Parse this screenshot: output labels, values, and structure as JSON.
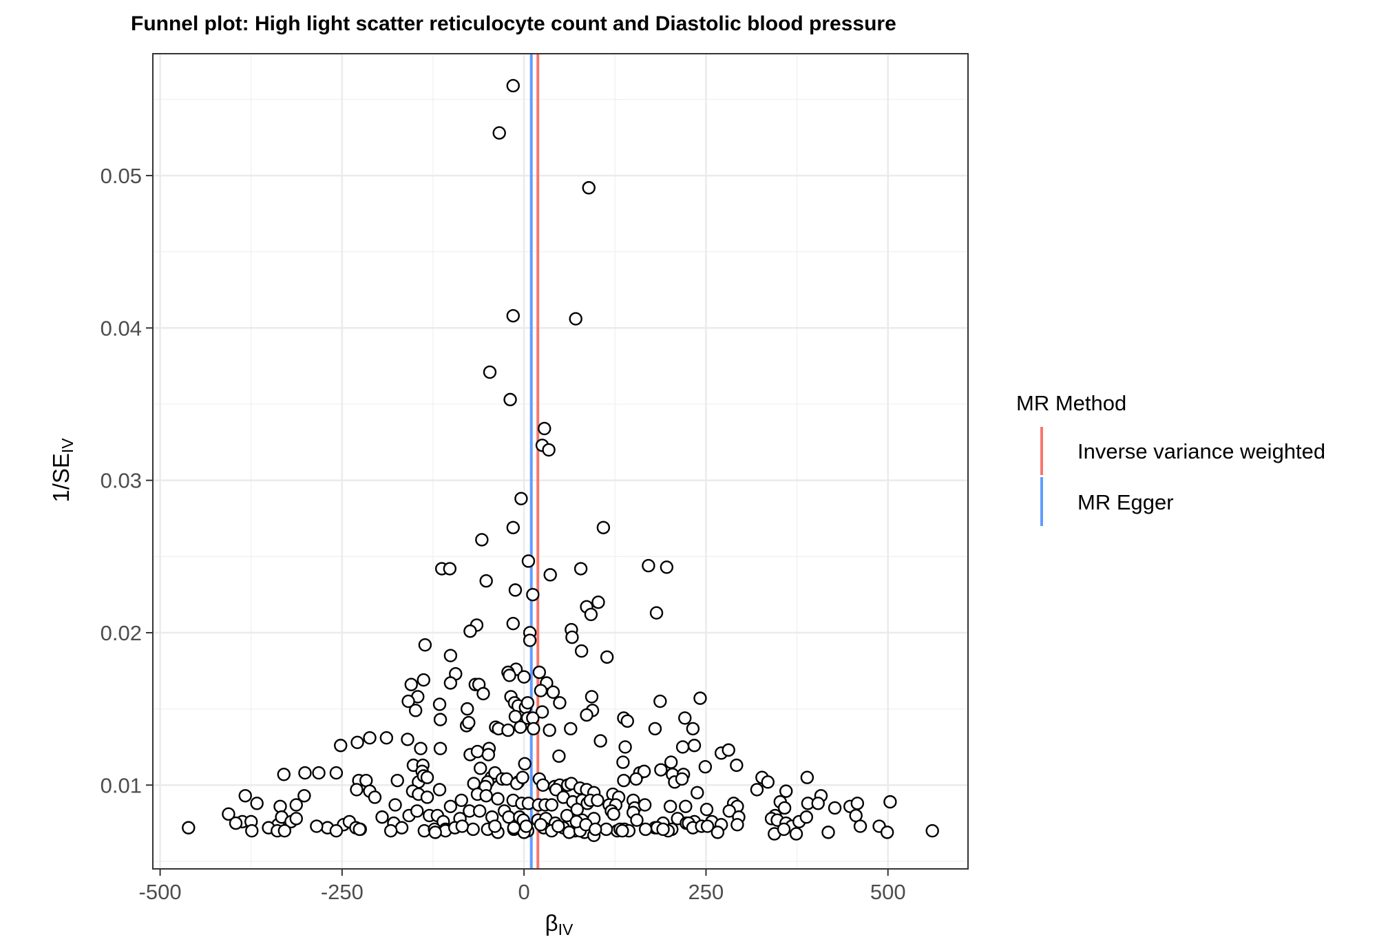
{
  "chart_data": {
    "type": "scatter",
    "title": "Funnel plot: High light scatter reticulocyte count and Diastolic blood pressure",
    "xlabel": {
      "main": "β",
      "sub": "IV"
    },
    "ylabel": {
      "main": "1/SE",
      "sub": "IV"
    },
    "xlim": [
      -510,
      610
    ],
    "ylim": [
      0.0045,
      0.058
    ],
    "xticks": [
      -500,
      -250,
      0,
      250,
      500
    ],
    "xtick_labels": [
      "-500",
      "-250",
      "0",
      "250",
      "500"
    ],
    "yticks": [
      0.01,
      0.02,
      0.03,
      0.04,
      0.05
    ],
    "ytick_labels": [
      "0.01",
      "0.02",
      "0.03",
      "0.04",
      "0.05"
    ],
    "grid": true,
    "legend": {
      "title": "MR Method",
      "position": "right",
      "entries": [
        {
          "name": "Inverse variance weighted",
          "color": "#f8766d"
        },
        {
          "name": "MR Egger",
          "color": "#619cff"
        }
      ]
    },
    "vlines": [
      {
        "method": "Inverse variance weighted",
        "x": 19,
        "color": "#f8766d"
      },
      {
        "method": "MR Egger",
        "x": 10,
        "color": "#619cff"
      }
    ],
    "points": [
      [
        -15,
        0.0559
      ],
      [
        -34,
        0.0528
      ],
      [
        89,
        0.0492
      ],
      [
        -15,
        0.0408
      ],
      [
        71,
        0.0406
      ],
      [
        -47,
        0.0371
      ],
      [
        -19,
        0.0353
      ],
      [
        28,
        0.0334
      ],
      [
        25,
        0.0323
      ],
      [
        34,
        0.032
      ],
      [
        -4,
        0.0288
      ],
      [
        -15,
        0.0269
      ],
      [
        109,
        0.0269
      ],
      [
        -58,
        0.0261
      ],
      [
        6,
        0.0247
      ],
      [
        171,
        0.0244
      ],
      [
        196,
        0.0243
      ],
      [
        -113,
        0.0242
      ],
      [
        -102,
        0.0242
      ],
      [
        78,
        0.0242
      ],
      [
        36,
        0.0238
      ],
      [
        -52,
        0.0234
      ],
      [
        -12,
        0.0228
      ],
      [
        12,
        0.0225
      ],
      [
        102,
        0.022
      ],
      [
        86,
        0.0217
      ],
      [
        92,
        0.0212
      ],
      [
        182,
        0.0213
      ],
      [
        -65,
        0.0205
      ],
      [
        -74,
        0.0201
      ],
      [
        -15,
        0.0206
      ],
      [
        65,
        0.0202
      ],
      [
        8,
        0.02
      ],
      [
        66,
        0.0197
      ],
      [
        8,
        0.0195
      ],
      [
        -136,
        0.0192
      ],
      [
        -101,
        0.0185
      ],
      [
        79,
        0.0188
      ],
      [
        114,
        0.0184
      ],
      [
        -11,
        0.0176
      ],
      [
        -22,
        0.0174
      ],
      [
        21,
        0.0174
      ],
      [
        -94,
        0.0173
      ],
      [
        -20,
        0.0172
      ],
      [
        0,
        0.0171
      ],
      [
        -101,
        0.0167
      ],
      [
        31,
        0.0167
      ],
      [
        -155,
        0.0166
      ],
      [
        -138,
        0.0169
      ],
      [
        -67,
        0.0166
      ],
      [
        -62,
        0.0166
      ],
      [
        23,
        0.0162
      ],
      [
        40,
        0.0161
      ],
      [
        -56,
        0.016
      ],
      [
        -146,
        0.0158
      ],
      [
        -18,
        0.0158
      ],
      [
        93,
        0.0158
      ],
      [
        -159,
        0.0155
      ],
      [
        242,
        0.0157
      ],
      [
        -13,
        0.0154
      ],
      [
        49,
        0.0154
      ],
      [
        187,
        0.0155
      ],
      [
        -116,
        0.0153
      ],
      [
        -8,
        0.0152
      ],
      [
        2,
        0.0151
      ],
      [
        5,
        0.0154
      ],
      [
        -78,
        0.015
      ],
      [
        -149,
        0.0149
      ],
      [
        94,
        0.0149
      ],
      [
        25,
        0.0148
      ],
      [
        -12,
        0.0145
      ],
      [
        86,
        0.0146
      ],
      [
        5,
        0.0144
      ],
      [
        -115,
        0.0143
      ],
      [
        137,
        0.0144
      ],
      [
        12,
        0.0144
      ],
      [
        142,
        0.0142
      ],
      [
        221,
        0.0144
      ],
      [
        -79,
        0.0139
      ],
      [
        -76,
        0.0141
      ],
      [
        -39,
        0.0138
      ],
      [
        -35,
        0.0137
      ],
      [
        -22,
        0.0136
      ],
      [
        -5,
        0.0138
      ],
      [
        13,
        0.0137
      ],
      [
        35,
        0.0136
      ],
      [
        64,
        0.0137
      ],
      [
        180,
        0.0137
      ],
      [
        232,
        0.0137
      ],
      [
        -189,
        0.0131
      ],
      [
        -212,
        0.0131
      ],
      [
        -160,
        0.013
      ],
      [
        105,
        0.0129
      ],
      [
        -229,
        0.0128
      ],
      [
        -252,
        0.0126
      ],
      [
        -142,
        0.0124
      ],
      [
        -115,
        0.0124
      ],
      [
        -48,
        0.0124
      ],
      [
        -74,
        0.012
      ],
      [
        -64,
        0.0122
      ],
      [
        -49,
        0.012
      ],
      [
        48,
        0.0119
      ],
      [
        139,
        0.0125
      ],
      [
        218,
        0.0125
      ],
      [
        234,
        0.0126
      ],
      [
        271,
        0.0121
      ],
      [
        281,
        0.0123
      ],
      [
        -152,
        0.0113
      ],
      [
        -139,
        0.0113
      ],
      [
        -60,
        0.0111
      ],
      [
        1,
        0.0114
      ],
      [
        136,
        0.0115
      ],
      [
        202,
        0.0115
      ],
      [
        292,
        0.0113
      ],
      [
        -140,
        0.0109
      ],
      [
        -45,
        0.0105
      ],
      [
        -40,
        0.0108
      ],
      [
        -30,
        0.0104
      ],
      [
        -24,
        0.0104
      ],
      [
        -8,
        0.0102
      ],
      [
        159,
        0.0108
      ],
      [
        165,
        0.0109
      ],
      [
        188,
        0.011
      ],
      [
        204,
        0.0107
      ],
      [
        219,
        0.0107
      ],
      [
        249,
        0.0112
      ],
      [
        -330,
        0.0107
      ],
      [
        -301,
        0.0108
      ],
      [
        -282,
        0.0108
      ],
      [
        -258,
        0.0108
      ],
      [
        -174,
        0.0103
      ],
      [
        -145,
        0.0102
      ],
      [
        -138,
        0.0106
      ],
      [
        -133,
        0.0105
      ],
      [
        -227,
        0.0103
      ],
      [
        -217,
        0.0103
      ],
      [
        -69,
        0.0101
      ],
      [
        -50,
        0.0102
      ],
      [
        -53,
        0.0099
      ],
      [
        -10,
        0.0101
      ],
      [
        -2,
        0.0105
      ],
      [
        21,
        0.0104
      ],
      [
        26,
        0.01
      ],
      [
        42,
        0.0099
      ],
      [
        49,
        0.01
      ],
      [
        60,
        0.01
      ],
      [
        65,
        0.0101
      ],
      [
        77,
        0.0098
      ],
      [
        86,
        0.0097
      ],
      [
        96,
        0.0095
      ],
      [
        122,
        0.0094
      ],
      [
        130,
        0.0092
      ],
      [
        137,
        0.0103
      ],
      [
        154,
        0.0104
      ],
      [
        207,
        0.0102
      ],
      [
        217,
        0.0104
      ],
      [
        238,
        0.0095
      ],
      [
        327,
        0.0105
      ],
      [
        335,
        0.0102
      ],
      [
        320,
        0.0097
      ],
      [
        360,
        0.0096
      ],
      [
        389,
        0.0105
      ],
      [
        408,
        0.0093
      ],
      [
        -383,
        0.0093
      ],
      [
        -302,
        0.0093
      ],
      [
        -230,
        0.0097
      ],
      [
        -212,
        0.0096
      ],
      [
        -205,
        0.0092
      ],
      [
        -177,
        0.0087
      ],
      [
        -153,
        0.0096
      ],
      [
        -145,
        0.0094
      ],
      [
        -133,
        0.0092
      ],
      [
        -116,
        0.0097
      ],
      [
        -101,
        0.0086
      ],
      [
        -86,
        0.009
      ],
      [
        -64,
        0.0094
      ],
      [
        -52,
        0.0093
      ],
      [
        -36,
        0.0091
      ],
      [
        -15,
        0.009
      ],
      [
        -3,
        0.0088
      ],
      [
        6,
        0.0088
      ],
      [
        20,
        0.0087
      ],
      [
        29,
        0.0087
      ],
      [
        38,
        0.0087
      ],
      [
        44,
        0.0097
      ],
      [
        54,
        0.0092
      ],
      [
        67,
        0.0089
      ],
      [
        80,
        0.009
      ],
      [
        87,
        0.0088
      ],
      [
        91,
        0.009
      ],
      [
        101,
        0.009
      ],
      [
        117,
        0.0087
      ],
      [
        126,
        0.0087
      ],
      [
        150,
        0.009
      ],
      [
        152,
        0.0085
      ],
      [
        166,
        0.0087
      ],
      [
        201,
        0.0086
      ],
      [
        222,
        0.0086
      ],
      [
        251,
        0.0084
      ],
      [
        288,
        0.0088
      ],
      [
        293,
        0.0086
      ],
      [
        345,
        0.008
      ],
      [
        352,
        0.0089
      ],
      [
        358,
        0.0085
      ],
      [
        390,
        0.0088
      ],
      [
        404,
        0.0088
      ],
      [
        427,
        0.0085
      ],
      [
        448,
        0.0086
      ],
      [
        458,
        0.0088
      ],
      [
        503,
        0.0089
      ],
      [
        -367,
        0.0088
      ],
      [
        -335,
        0.0086
      ],
      [
        -313,
        0.0087
      ],
      [
        -406,
        0.0081
      ],
      [
        -387,
        0.0076
      ],
      [
        -375,
        0.0076
      ],
      [
        -338,
        0.0074
      ],
      [
        -333,
        0.0079
      ],
      [
        -320,
        0.0076
      ],
      [
        -313,
        0.0078
      ],
      [
        -270,
        0.0072
      ],
      [
        -248,
        0.0074
      ],
      [
        -240,
        0.0076
      ],
      [
        -225,
        0.0071
      ],
      [
        -195,
        0.0079
      ],
      [
        -179,
        0.0075
      ],
      [
        -158,
        0.008
      ],
      [
        -147,
        0.0083
      ],
      [
        -130,
        0.008
      ],
      [
        -119,
        0.008
      ],
      [
        -111,
        0.0076
      ],
      [
        -88,
        0.0078
      ],
      [
        -75,
        0.0083
      ],
      [
        -61,
        0.0083
      ],
      [
        -44,
        0.0079
      ],
      [
        -27,
        0.0083
      ],
      [
        -21,
        0.0079
      ],
      [
        -6,
        0.0079
      ],
      [
        -1,
        0.0077
      ],
      [
        19,
        0.0077
      ],
      [
        30,
        0.0078
      ],
      [
        43,
        0.0075
      ],
      [
        59,
        0.008
      ],
      [
        73,
        0.0084
      ],
      [
        80,
        0.0077
      ],
      [
        96,
        0.0078
      ],
      [
        120,
        0.0083
      ],
      [
        123,
        0.0081
      ],
      [
        150,
        0.0082
      ],
      [
        155,
        0.0077
      ],
      [
        180,
        0.0072
      ],
      [
        191,
        0.0075
      ],
      [
        211,
        0.0078
      ],
      [
        223,
        0.0075
      ],
      [
        234,
        0.0076
      ],
      [
        258,
        0.0076
      ],
      [
        271,
        0.0074
      ],
      [
        282,
        0.0083
      ],
      [
        295,
        0.0079
      ],
      [
        340,
        0.0078
      ],
      [
        348,
        0.0077
      ],
      [
        360,
        0.0075
      ],
      [
        368,
        0.0073
      ],
      [
        378,
        0.0076
      ],
      [
        388,
        0.0079
      ],
      [
        456,
        0.008
      ],
      [
        462,
        0.0073
      ],
      [
        488,
        0.0073
      ],
      [
        -461,
        0.0072
      ],
      [
        -396,
        0.0075
      ],
      [
        -374,
        0.007
      ],
      [
        -351,
        0.0072
      ],
      [
        -339,
        0.007
      ],
      [
        -329,
        0.007
      ],
      [
        -285,
        0.0073
      ],
      [
        -258,
        0.007
      ],
      [
        -231,
        0.0072
      ],
      [
        -168,
        0.0072
      ],
      [
        -137,
        0.007
      ],
      [
        -123,
        0.0071
      ],
      [
        -108,
        0.0071
      ],
      [
        -108,
        0.007
      ],
      [
        -70,
        0.0071
      ],
      [
        -50,
        0.0071
      ],
      [
        -36,
        0.0069
      ],
      [
        -14,
        0.0071
      ],
      [
        5,
        0.007
      ],
      [
        27,
        0.0072
      ],
      [
        54,
        0.0072
      ],
      [
        70,
        0.007
      ],
      [
        83,
        0.0069
      ],
      [
        96,
        0.0067
      ],
      [
        128,
        0.007
      ],
      [
        132,
        0.0071
      ],
      [
        138,
        0.0071
      ],
      [
        167,
        0.0071
      ],
      [
        183,
        0.0072
      ],
      [
        203,
        0.0071
      ],
      [
        226,
        0.0075
      ],
      [
        232,
        0.0072
      ],
      [
        266,
        0.0069
      ],
      [
        344,
        0.0068
      ],
      [
        374,
        0.0068
      ],
      [
        418,
        0.0069
      ],
      [
        499,
        0.0069
      ],
      [
        561,
        0.007
      ],
      [
        -95,
        0.0072
      ],
      [
        -40,
        0.0073
      ],
      [
        0,
        0.0069
      ],
      [
        38,
        0.007
      ],
      [
        62,
        0.0069
      ],
      [
        77,
        0.007
      ],
      [
        113,
        0.0071
      ],
      [
        144,
        0.007
      ],
      [
        198,
        0.007
      ],
      [
        244,
        0.0073
      ],
      [
        293,
        0.0074
      ],
      [
        357,
        0.0071
      ],
      [
        -226,
        0.0071
      ],
      [
        -183,
        0.007
      ],
      [
        -122,
        0.0069
      ],
      [
        -85,
        0.0073
      ],
      [
        -14,
        0.0072
      ],
      [
        3,
        0.0073
      ],
      [
        23,
        0.0074
      ],
      [
        47,
        0.0073
      ],
      [
        72,
        0.0076
      ],
      [
        85,
        0.0074
      ],
      [
        98,
        0.0071
      ],
      [
        135,
        0.007
      ],
      [
        191,
        0.0071
      ],
      [
        252,
        0.0073
      ]
    ]
  }
}
